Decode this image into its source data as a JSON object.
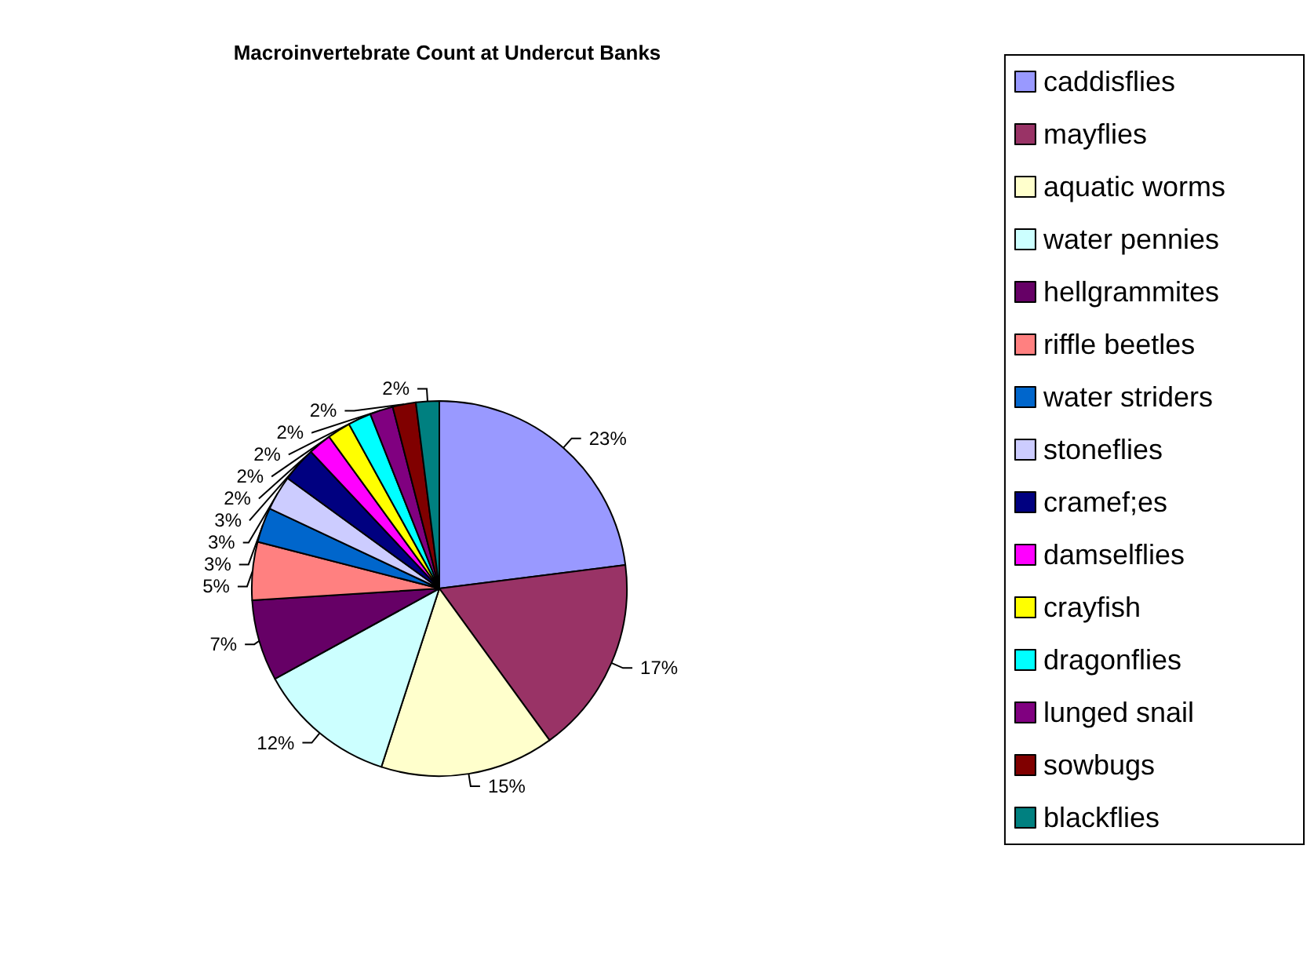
{
  "chart_data": {
    "type": "pie",
    "title": "Macroinvertebrate Count at Undercut Banks",
    "categories": [
      "caddisflies",
      "mayflies",
      "aquatic worms",
      "water pennies",
      "hellgrammites",
      "riffle beetles",
      "water striders",
      "stoneflies",
      "cramef;es",
      "damselflies",
      "crayfish",
      "dragonflies",
      "lunged snail",
      "sowbugs",
      "blackflies"
    ],
    "values": [
      23,
      17,
      15,
      12,
      7,
      5,
      3,
      3,
      3,
      2,
      2,
      2,
      2,
      2,
      2
    ],
    "value_labels": [
      "23%",
      "17%",
      "15%",
      "12%",
      "7%",
      "5%",
      "3%",
      "3%",
      "3%",
      "2%",
      "2%",
      "2%",
      "2%",
      "2%",
      "2%"
    ],
    "colors": [
      "#9999ff",
      "#993366",
      "#ffffcc",
      "#ccffff",
      "#660066",
      "#ff8080",
      "#0066cc",
      "#ccccff",
      "#000080",
      "#ff00ff",
      "#ffff00",
      "#00ffff",
      "#800080",
      "#800000",
      "#008080"
    ],
    "legend": "right"
  }
}
